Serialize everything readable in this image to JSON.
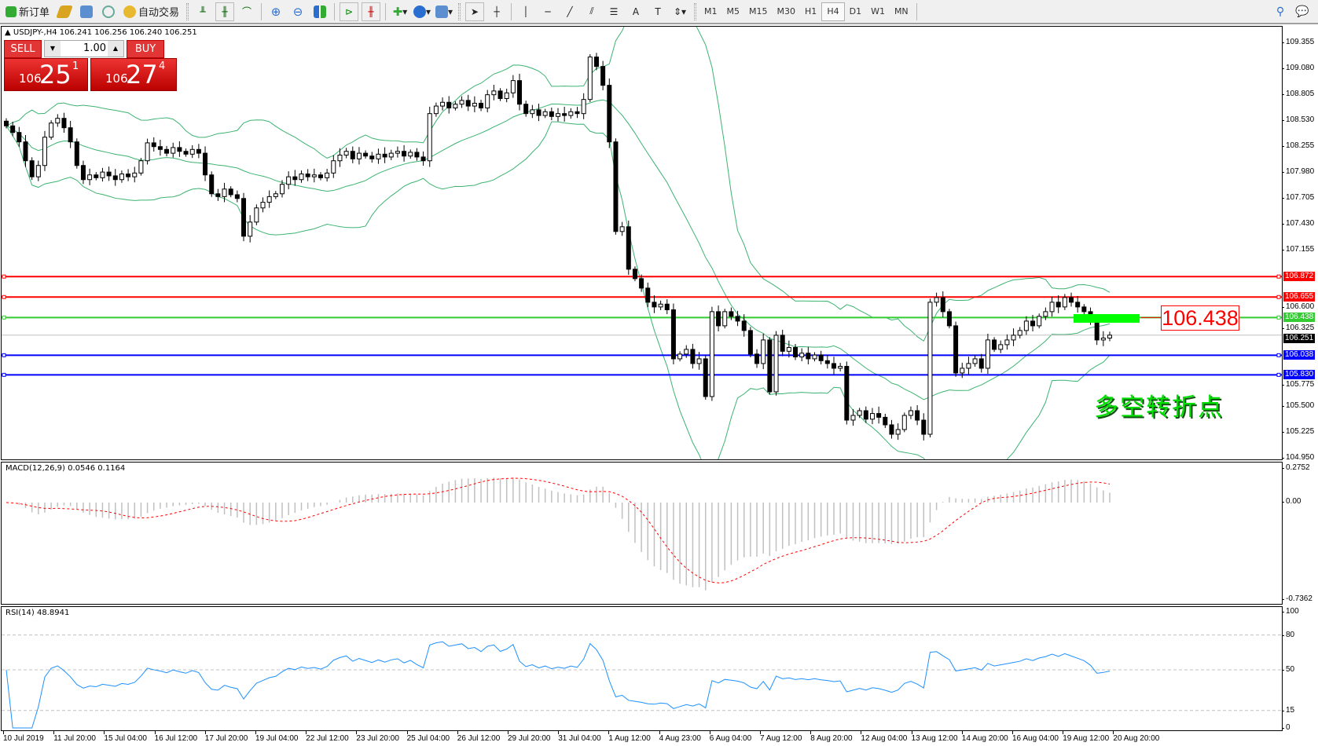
{
  "toolbar": {
    "new_order": "新订单",
    "auto_trading": "自动交易",
    "timeframes": [
      "M1",
      "M5",
      "M15",
      "M30",
      "H1",
      "H4",
      "D1",
      "W1",
      "MN"
    ],
    "active_timeframe": "H4"
  },
  "chart_header": "USDJPY-,H4  106.241 106.256 106.240 106.251",
  "trade_panel": {
    "sell": "SELL",
    "buy": "BUY",
    "lots": "1.00",
    "bid_prefix": "106",
    "bid_big": "25",
    "bid_sup": "1",
    "ask_prefix": "106",
    "ask_big": "27",
    "ask_sup": "4"
  },
  "price_axis": [
    "109.355",
    "109.080",
    "108.805",
    "108.530",
    "108.255",
    "107.980",
    "107.705",
    "107.430",
    "107.155",
    "106.600",
    "106.325",
    "105.775",
    "105.500",
    "105.225",
    "104.950"
  ],
  "levels": [
    {
      "price": "106.872",
      "color": "#ff0000"
    },
    {
      "price": "106.655",
      "color": "#ff0000"
    },
    {
      "price": "106.438",
      "color": "#33cc33"
    },
    {
      "price": "106.038",
      "color": "#0000ff"
    },
    {
      "price": "105.830",
      "color": "#0000ff"
    }
  ],
  "current_price": {
    "price": "106.251",
    "color": "#000000"
  },
  "annotation_box": "106.438",
  "annotation_text": "多空转折点",
  "macd": {
    "label": "MACD(12,26,9) 0.0546 0.1164",
    "axis": [
      "0.2752",
      "0.00",
      "-0.7362"
    ]
  },
  "rsi": {
    "label": "RSI(14) 48.8941",
    "axis": [
      "100",
      "80",
      "50",
      "15",
      "0"
    ],
    "levels": [
      80,
      50,
      15
    ]
  },
  "time_axis": [
    "10 Jul 2019",
    "11 Jul 20:00",
    "15 Jul 04:00",
    "16 Jul 12:00",
    "17 Jul 20:00",
    "19 Jul 04:00",
    "22 Jul 12:00",
    "23 Jul 20:00",
    "25 Jul 04:00",
    "26 Jul 12:00",
    "29 Jul 20:00",
    "31 Jul 04:00",
    "1 Aug 12:00",
    "4 Aug 23:00",
    "6 Aug 04:00",
    "7 Aug 12:00",
    "8 Aug 20:00",
    "12 Aug 04:00",
    "13 Aug 12:00",
    "14 Aug 20:00",
    "16 Aug 04:00",
    "19 Aug 12:00",
    "20 Aug 20:00"
  ],
  "chart_data": {
    "type": "candlestick",
    "symbol": "USDJPY-",
    "timeframe": "H4",
    "price_range": [
      104.95,
      109.355
    ],
    "indicators": [
      "Bollinger Bands",
      "MACD(12,26,9)",
      "RSI(14)"
    ],
    "band_color": "#3cb371",
    "closes": [
      108.47,
      108.4,
      108.3,
      108.1,
      107.93,
      108.05,
      108.35,
      108.5,
      108.55,
      108.45,
      108.3,
      108.05,
      107.9,
      107.95,
      107.92,
      107.98,
      107.94,
      107.9,
      107.96,
      107.93,
      107.97,
      108.1,
      108.29,
      108.25,
      108.22,
      108.18,
      108.24,
      108.2,
      108.17,
      108.22,
      108.18,
      107.95,
      107.75,
      107.72,
      107.8,
      107.74,
      107.7,
      107.3,
      107.45,
      107.6,
      107.66,
      107.72,
      107.75,
      107.85,
      107.93,
      107.9,
      107.96,
      107.93,
      107.95,
      107.92,
      107.97,
      108.1,
      108.16,
      108.2,
      108.12,
      108.18,
      108.15,
      108.12,
      108.17,
      108.14,
      108.18,
      108.2,
      108.15,
      108.19,
      108.14,
      108.1,
      108.6,
      108.68,
      108.72,
      108.66,
      108.7,
      108.74,
      108.68,
      108.71,
      108.66,
      108.8,
      108.84,
      108.76,
      108.82,
      108.95,
      108.7,
      108.6,
      108.64,
      108.58,
      108.62,
      108.57,
      108.6,
      108.58,
      108.62,
      108.6,
      108.75,
      109.2,
      109.1,
      108.9,
      108.3,
      107.35,
      107.4,
      106.95,
      106.85,
      106.75,
      106.6,
      106.55,
      106.58,
      106.52,
      106.0,
      106.05,
      106.1,
      105.95,
      106.0,
      105.6,
      106.5,
      106.35,
      106.5,
      106.45,
      106.4,
      106.3,
      106.05,
      105.95,
      106.2,
      105.65,
      106.25,
      106.08,
      106.12,
      106.02,
      106.06,
      106.0,
      106.04,
      105.98,
      105.95,
      105.9,
      105.92,
      105.35,
      105.4,
      105.45,
      105.36,
      105.42,
      105.38,
      105.3,
      105.2,
      105.25,
      105.4,
      105.45,
      105.35,
      105.2,
      106.6,
      106.65,
      106.5,
      106.35,
      105.85,
      105.9,
      105.95,
      106.0,
      105.9,
      106.2,
      106.1,
      106.15,
      106.2,
      106.25,
      106.3,
      106.4,
      106.35,
      106.45,
      106.5,
      106.6,
      106.55,
      106.65,
      106.6,
      106.55,
      106.5,
      106.4,
      106.2,
      106.22,
      106.251
    ]
  }
}
